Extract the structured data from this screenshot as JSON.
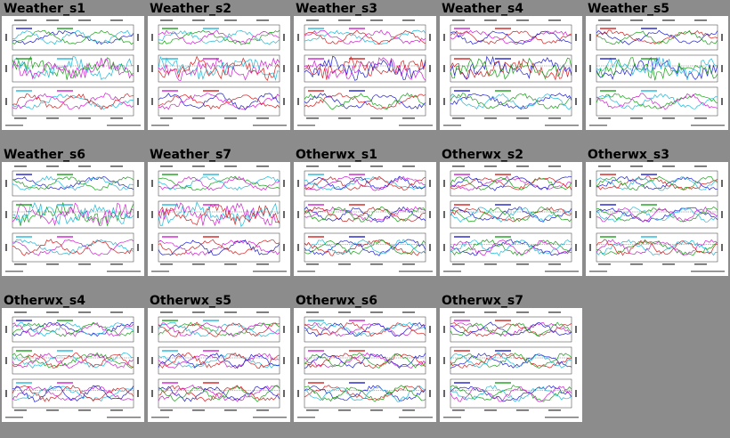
{
  "gallery": {
    "items": [
      {
        "title": "Weather_s1",
        "kind": "weather"
      },
      {
        "title": "Weather_s2",
        "kind": "weather"
      },
      {
        "title": "Weather_s3",
        "kind": "weather"
      },
      {
        "title": "Weather_s4",
        "kind": "weather"
      },
      {
        "title": "Weather_s5",
        "kind": "weather"
      },
      {
        "title": "Weather_s6",
        "kind": "weather"
      },
      {
        "title": "Weather_s7",
        "kind": "weather"
      },
      {
        "title": "Otherwx_s1",
        "kind": "otherwx"
      },
      {
        "title": "Otherwx_s2",
        "kind": "otherwx"
      },
      {
        "title": "Otherwx_s3",
        "kind": "otherwx"
      },
      {
        "title": "Otherwx_s4",
        "kind": "otherwx"
      },
      {
        "title": "Otherwx_s5",
        "kind": "otherwx"
      },
      {
        "title": "Otherwx_s6",
        "kind": "otherwx"
      },
      {
        "title": "Otherwx_s7",
        "kind": "otherwx"
      }
    ]
  },
  "colors": {
    "background": "#8c8c8c",
    "thumb_bg": "#ffffff",
    "series": [
      "#d62020",
      "#2020d0",
      "#18a018",
      "#20b8d8",
      "#d020d0"
    ]
  }
}
